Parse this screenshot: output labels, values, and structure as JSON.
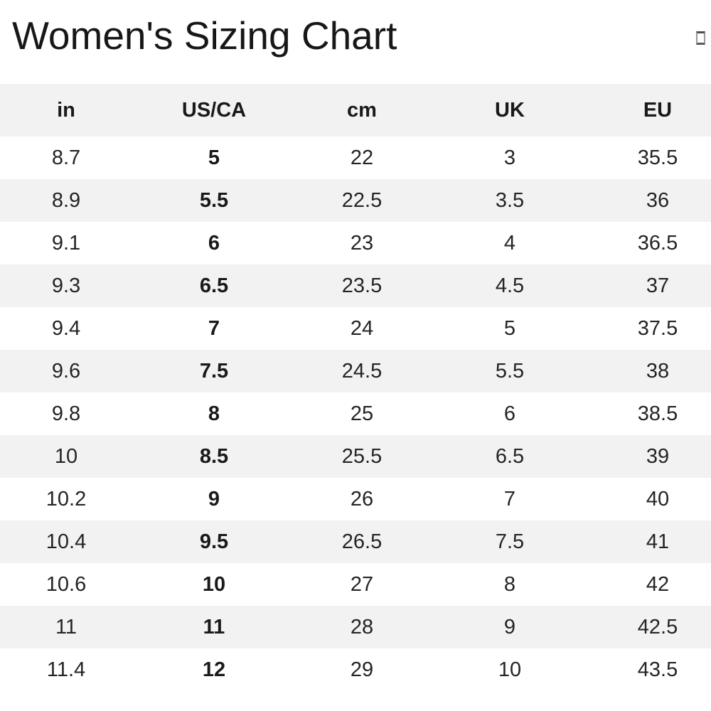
{
  "header": {
    "title": "Women's Sizing Chart",
    "placeholder_icon": "missing-glyph-box"
  },
  "chart_data": {
    "type": "table",
    "title": "Women's Sizing Chart",
    "columns": [
      "in",
      "US/CA",
      "cm",
      "UK",
      "EU"
    ],
    "rows": [
      [
        "8.7",
        "5",
        "22",
        "3",
        "35.5"
      ],
      [
        "8.9",
        "5.5",
        "22.5",
        "3.5",
        "36"
      ],
      [
        "9.1",
        "6",
        "23",
        "4",
        "36.5"
      ],
      [
        "9.3",
        "6.5",
        "23.5",
        "4.5",
        "37"
      ],
      [
        "9.4",
        "7",
        "24",
        "5",
        "37.5"
      ],
      [
        "9.6",
        "7.5",
        "24.5",
        "5.5",
        "38"
      ],
      [
        "9.8",
        "8",
        "25",
        "6",
        "38.5"
      ],
      [
        "10",
        "8.5",
        "25.5",
        "6.5",
        "39"
      ],
      [
        "10.2",
        "9",
        "26",
        "7",
        "40"
      ],
      [
        "10.4",
        "9.5",
        "26.5",
        "7.5",
        "41"
      ],
      [
        "10.6",
        "10",
        "27",
        "8",
        "42"
      ],
      [
        "11",
        "11",
        "28",
        "9",
        "42.5"
      ],
      [
        "11.4",
        "12",
        "29",
        "10",
        "43.5"
      ]
    ],
    "bold_column": "US/CA",
    "layout": {
      "legend": "none",
      "grid": "alternating-row-shading",
      "first_data_row_background": "white"
    }
  },
  "colors": {
    "header_bg": "#f2f2f2",
    "alt_row_bg": "#f2f2f2",
    "text": "#1f1f1f"
  }
}
